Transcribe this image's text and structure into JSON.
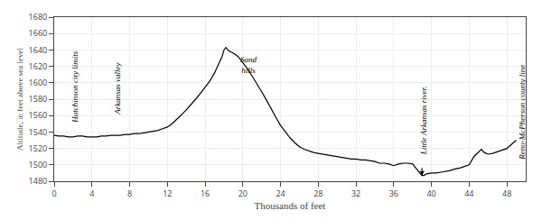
{
  "chart_data": {
    "type": "line",
    "xlabel": "Thousands of feet",
    "ylabel": "Altitude, in feet above sea level",
    "xlim": [
      0,
      50
    ],
    "ylim": [
      1480,
      1680
    ],
    "xticks": [
      0,
      4,
      8,
      12,
      16,
      20,
      24,
      28,
      32,
      36,
      40,
      44,
      48
    ],
    "yticks": [
      1480,
      1500,
      1520,
      1540,
      1560,
      1580,
      1600,
      1620,
      1640,
      1660,
      1680
    ],
    "grid": true,
    "color": "#000000",
    "x": [
      0.0,
      0.5,
      1.0,
      1.5,
      2.0,
      2.5,
      3.0,
      3.5,
      4.0,
      4.5,
      5.0,
      5.5,
      6.0,
      6.5,
      7.0,
      7.5,
      8.0,
      8.5,
      9.0,
      9.5,
      10.0,
      10.5,
      11.0,
      11.5,
      12.0,
      12.5,
      13.0,
      13.5,
      14.0,
      14.5,
      15.0,
      15.5,
      16.0,
      16.5,
      17.0,
      17.5,
      17.8,
      18.0,
      18.2,
      18.5,
      19.0,
      19.5,
      20.0,
      20.5,
      21.0,
      21.5,
      22.0,
      22.5,
      23.0,
      23.5,
      24.0,
      24.5,
      25.0,
      25.5,
      26.0,
      26.5,
      27.0,
      27.5,
      28.0,
      28.5,
      29.0,
      29.5,
      30.0,
      30.5,
      31.0,
      31.5,
      32.0,
      32.5,
      33.0,
      33.5,
      34.0,
      34.5,
      35.0,
      35.5,
      35.8,
      36.0,
      36.5,
      37.0,
      37.5,
      38.0,
      38.5,
      39.0,
      39.2,
      39.5,
      40.0,
      40.5,
      41.0,
      41.5,
      42.0,
      42.5,
      43.0,
      43.5,
      44.0,
      44.5,
      45.0,
      45.3,
      45.6,
      46.0,
      46.5,
      47.0,
      47.5,
      48.0,
      48.5,
      49.0
    ],
    "values": [
      1536,
      1535,
      1535,
      1534,
      1534,
      1535,
      1535,
      1534,
      1534,
      1534,
      1535,
      1535,
      1536,
      1536,
      1536,
      1537,
      1537,
      1538,
      1538,
      1539,
      1540,
      1541,
      1542,
      1544,
      1546,
      1550,
      1555,
      1561,
      1567,
      1573,
      1580,
      1587,
      1594,
      1602,
      1612,
      1624,
      1632,
      1640,
      1643,
      1639,
      1636,
      1632,
      1625,
      1617,
      1608,
      1599,
      1589,
      1579,
      1568,
      1558,
      1548,
      1540,
      1533,
      1527,
      1522,
      1519,
      1517,
      1515,
      1514,
      1513,
      1512,
      1511,
      1510,
      1509,
      1508,
      1507,
      1507,
      1506,
      1506,
      1505,
      1504,
      1502,
      1502,
      1501,
      1500,
      1499,
      1501,
      1502,
      1502,
      1501,
      1494,
      1487,
      1487,
      1489,
      1490,
      1490,
      1491,
      1492,
      1493,
      1495,
      1496,
      1498,
      1500,
      1510,
      1516,
      1519,
      1515,
      1513,
      1514,
      1516,
      1518,
      1520,
      1525,
      1530
    ],
    "annotations": [
      {
        "text": "Hutchinson city limits",
        "x": 1.5,
        "y": 1548,
        "orientation": "vertical"
      },
      {
        "text": "Arkansas valley",
        "x": 6.0,
        "y": 1558,
        "orientation": "vertical"
      },
      {
        "text": "Sand\nhills",
        "x": 20.6,
        "y": 1608,
        "orientation": "horizontal"
      },
      {
        "text": "Little Arkansas river.",
        "x": 38.5,
        "y": 1510,
        "orientation": "vertical",
        "arrow": {
          "x": 39.0,
          "from": 1498,
          "to": 1487
        }
      },
      {
        "text": "Reno-McPherson county line",
        "x": 49.0,
        "y": 1503,
        "orientation": "vertical"
      }
    ]
  }
}
